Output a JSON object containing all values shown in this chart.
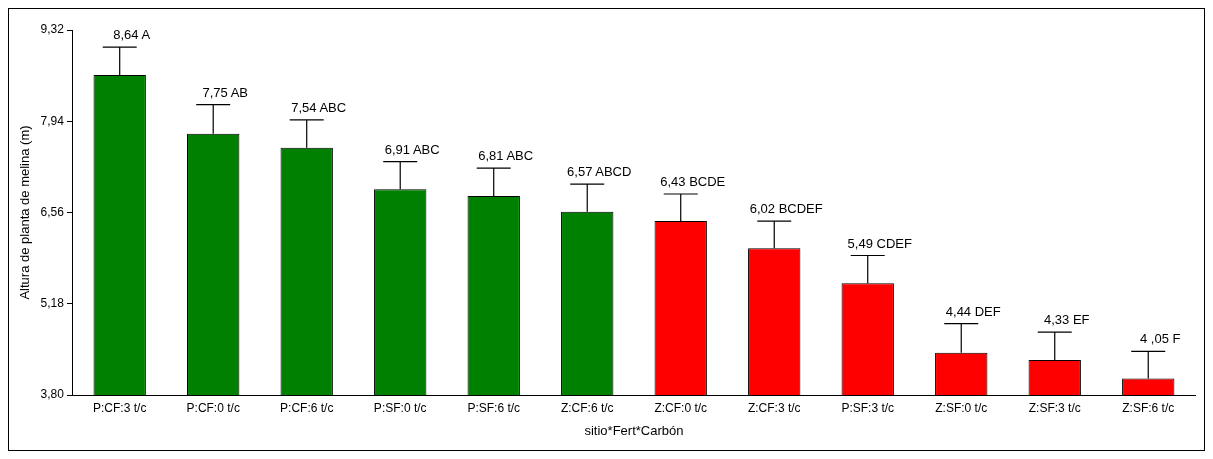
{
  "chart_data": {
    "type": "bar",
    "xlabel": "sitio*Fert*Carbón",
    "ylabel": "Altura de planta de melina (m)",
    "categories": [
      "P:CF:3 t/c",
      "P:CF:0 t/c",
      "P:CF:6 t/c",
      "P:SF:0 t/c",
      "P:SF:6 t/c",
      "Z:CF:6 t/c",
      "Z:CF:0 t/c",
      "Z:CF:3 t/c",
      "P:SF:3 t/c",
      "Z:SF:0 t/c",
      "Z:SF:3 t/c",
      "Z:SF:6 t/c"
    ],
    "values": [
      8.64,
      7.75,
      7.54,
      6.91,
      6.81,
      6.57,
      6.43,
      6.02,
      5.49,
      4.44,
      4.33,
      4.05
    ],
    "colors": [
      "#008000",
      "#008000",
      "#008000",
      "#008000",
      "#008000",
      "#008000",
      "#ff0000",
      "#ff0000",
      "#ff0000",
      "#ff0000",
      "#ff0000",
      "#ff0000"
    ],
    "errors": [
      [
        8.64,
        9.06
      ],
      [
        7.75,
        8.19
      ],
      [
        7.54,
        7.96
      ],
      [
        6.91,
        7.33
      ],
      [
        6.81,
        7.23
      ],
      [
        6.57,
        6.99
      ],
      [
        6.43,
        6.84
      ],
      [
        6.02,
        6.43
      ],
      [
        5.49,
        5.91
      ],
      [
        4.44,
        4.88
      ],
      [
        4.33,
        4.75
      ],
      [
        4.05,
        4.46
      ]
    ],
    "value_labels": [
      "8,64 A",
      "7,75 AB",
      "7,54 ABC",
      "6,91 ABC",
      "6,81 ABC",
      "6,57 ABCD",
      "6,43 BCDE",
      "6,02 BCDEF",
      "5,49 CDEF",
      "4,44 DEF",
      "4,33 EF",
      "4 ,05 F"
    ],
    "ylim": [
      3.8,
      9.32
    ],
    "yticks": [
      {
        "value": 3.8,
        "label": "3,80"
      },
      {
        "value": 5.18,
        "label": "5,18"
      },
      {
        "value": 6.56,
        "label": "6,56"
      },
      {
        "value": 7.94,
        "label": "7,94"
      },
      {
        "value": 9.32,
        "label": "9,32"
      }
    ],
    "grid": false,
    "legend": false
  }
}
